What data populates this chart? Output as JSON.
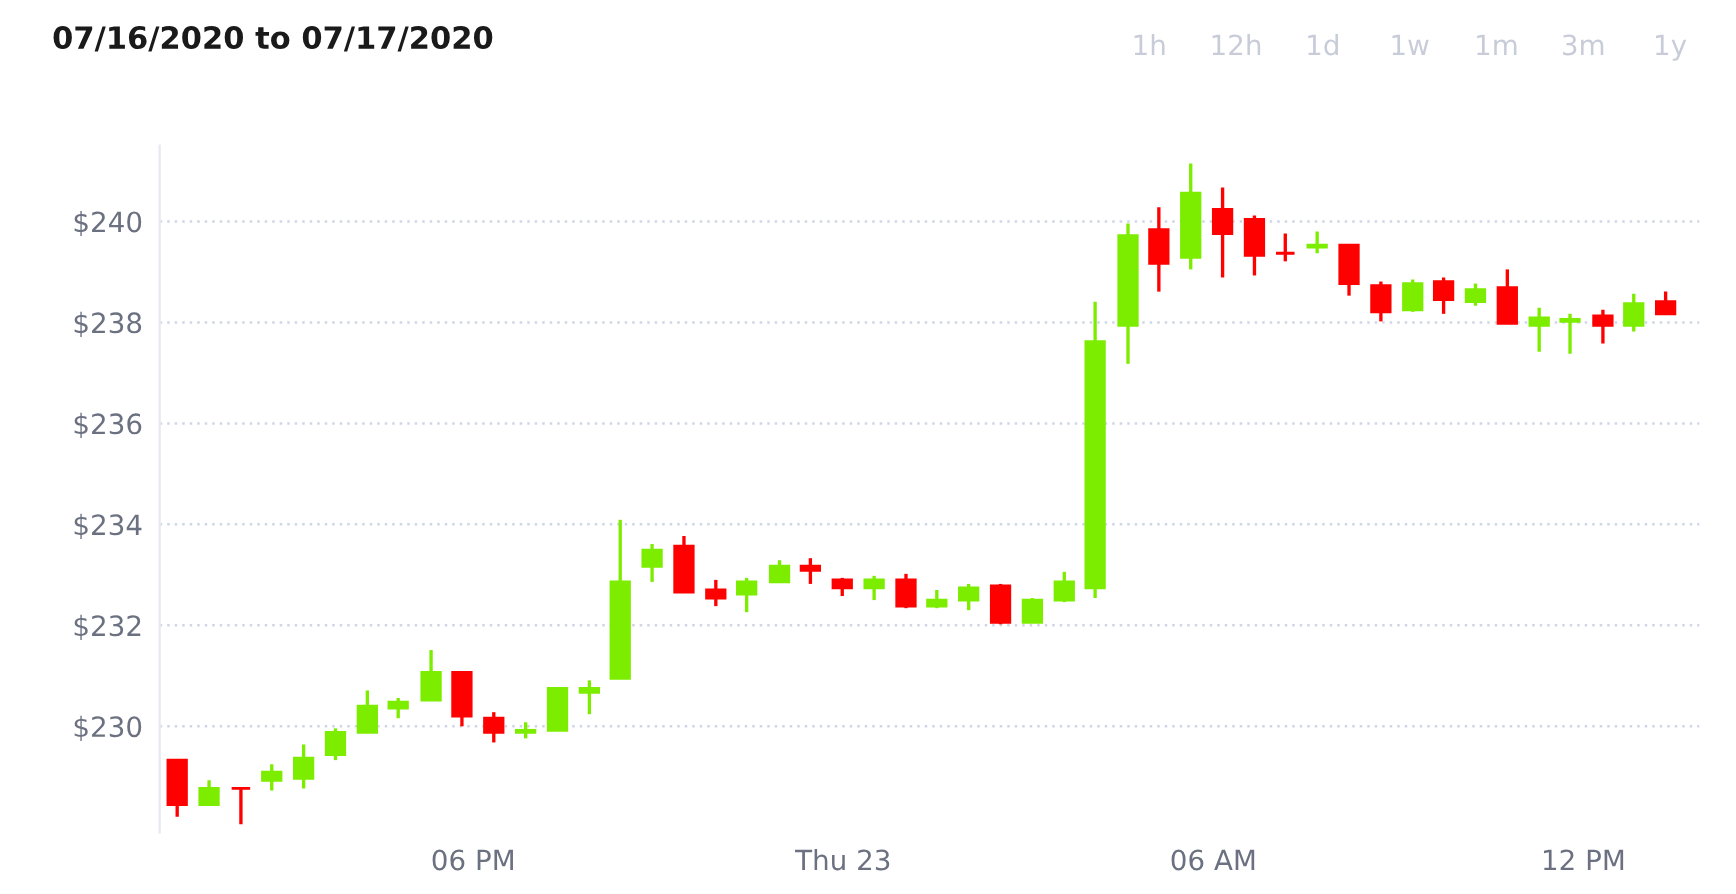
{
  "chart_data": {
    "type": "candlestick",
    "title": "07/16/2020 to 07/17/2020",
    "annotations": [
      "1h",
      "12h",
      "1d",
      "1w",
      "1m",
      "3m",
      "1y"
    ],
    "x": [
      "2020-07-22T13:12",
      "2020-07-22T13:43",
      "2020-07-22T14:14",
      "2020-07-22T14:44",
      "2020-07-22T15:15",
      "2020-07-22T15:46",
      "2020-07-22T16:17",
      "2020-07-22T16:47",
      "2020-07-22T17:19",
      "2020-07-22T17:49",
      "2020-07-22T18:20",
      "2020-07-22T18:51",
      "2020-07-22T19:22",
      "2020-07-22T19:53",
      "2020-07-22T20:23",
      "2020-07-22T20:54",
      "2020-07-22T21:25",
      "2020-07-22T21:56",
      "2020-07-22T22:26",
      "2020-07-22T22:58",
      "2020-07-22T23:28",
      "2020-07-22T23:59",
      "2020-07-23T00:30",
      "2020-07-23T01:01",
      "2020-07-23T01:31",
      "2020-07-23T02:02",
      "2020-07-23T02:33",
      "2020-07-23T03:04",
      "2020-07-23T03:35",
      "2020-07-23T04:05",
      "2020-07-23T04:37",
      "2020-07-23T05:07",
      "2020-07-23T05:38",
      "2020-07-23T06:09",
      "2020-07-23T06:40",
      "2020-07-23T07:10",
      "2020-07-23T07:41",
      "2020-07-23T08:12",
      "2020-07-23T08:43",
      "2020-07-23T09:14",
      "2020-07-23T09:44",
      "2020-07-23T10:15",
      "2020-07-23T10:46",
      "2020-07-23T11:17",
      "2020-07-23T11:47",
      "2020-07-23T12:19",
      "2020-07-23T12:49",
      "2020-07-23T13:20"
    ],
    "ohlc": [
      [
        229.33,
        229.33,
        228.21,
        228.45
      ],
      [
        228.45,
        228.93,
        228.45,
        228.77
      ],
      [
        228.77,
        228.77,
        228.06,
        228.77
      ],
      [
        228.93,
        229.25,
        228.73,
        229.09
      ],
      [
        228.97,
        229.64,
        228.77,
        229.37
      ],
      [
        229.44,
        229.96,
        229.33,
        229.88
      ],
      [
        229.88,
        230.71,
        229.88,
        230.4
      ],
      [
        230.36,
        230.56,
        230.16,
        230.48
      ],
      [
        230.52,
        231.51,
        230.52,
        231.07
      ],
      [
        231.07,
        231.07,
        230.0,
        230.2
      ],
      [
        230.16,
        230.28,
        229.68,
        229.88
      ],
      [
        229.88,
        230.08,
        229.76,
        229.92
      ],
      [
        229.92,
        230.75,
        229.92,
        230.75
      ],
      [
        230.67,
        230.91,
        230.24,
        230.75
      ],
      [
        230.95,
        234.09,
        230.95,
        232.86
      ],
      [
        233.17,
        233.61,
        232.86,
        233.49
      ],
      [
        233.57,
        233.77,
        232.66,
        232.66
      ],
      [
        232.7,
        232.9,
        232.38,
        232.54
      ],
      [
        232.62,
        232.94,
        232.26,
        232.86
      ],
      [
        232.86,
        233.29,
        232.86,
        233.17
      ],
      [
        233.17,
        233.33,
        232.82,
        233.09
      ],
      [
        232.9,
        232.94,
        232.58,
        232.74
      ],
      [
        232.74,
        232.98,
        232.5,
        232.9
      ],
      [
        232.9,
        233.02,
        232.34,
        232.38
      ],
      [
        232.38,
        232.7,
        232.34,
        232.5
      ],
      [
        232.5,
        232.82,
        232.3,
        232.74
      ],
      [
        232.78,
        232.82,
        232.02,
        232.06
      ],
      [
        232.06,
        232.54,
        232.06,
        232.5
      ],
      [
        232.5,
        233.06,
        232.46,
        232.86
      ],
      [
        232.74,
        238.41,
        232.54,
        237.62
      ],
      [
        237.94,
        239.96,
        237.18,
        239.72
      ],
      [
        239.84,
        240.28,
        238.61,
        239.17
      ],
      [
        239.29,
        241.15,
        239.05,
        240.56
      ],
      [
        240.24,
        240.67,
        238.89,
        239.76
      ],
      [
        240.04,
        240.12,
        238.93,
        239.33
      ],
      [
        239.37,
        239.76,
        239.21,
        239.37
      ],
      [
        239.49,
        239.8,
        239.37,
        239.53
      ],
      [
        239.53,
        239.53,
        238.53,
        238.77
      ],
      [
        238.73,
        238.81,
        238.02,
        238.21
      ],
      [
        238.25,
        238.85,
        238.21,
        238.77
      ],
      [
        238.81,
        238.89,
        238.17,
        238.45
      ],
      [
        238.41,
        238.77,
        238.33,
        238.65
      ],
      [
        238.69,
        239.05,
        237.98,
        237.98
      ],
      [
        237.94,
        238.29,
        237.42,
        238.09
      ],
      [
        238.02,
        238.17,
        237.38,
        238.06
      ],
      [
        238.13,
        238.25,
        237.58,
        237.94
      ],
      [
        237.94,
        238.57,
        237.82,
        238.37
      ],
      [
        238.41,
        238.61,
        238.17,
        238.17
      ]
    ],
    "colors": [
      "#ff0000",
      "#7ded00",
      "#ff0000",
      "#7ded00",
      "#7ded00",
      "#7ded00",
      "#7ded00",
      "#7ded00",
      "#7ded00",
      "#ff0000",
      "#ff0000",
      "#7ded00",
      "#7ded00",
      "#7ded00",
      "#7ded00",
      "#7ded00",
      "#ff0000",
      "#ff0000",
      "#7ded00",
      "#7ded00",
      "#ff0000",
      "#ff0000",
      "#7ded00",
      "#ff0000",
      "#7ded00",
      "#7ded00",
      "#ff0000",
      "#7ded00",
      "#7ded00",
      "#7ded00",
      "#7ded00",
      "#ff0000",
      "#7ded00",
      "#ff0000",
      "#ff0000",
      "#ff0000",
      "#7ded00",
      "#ff0000",
      "#ff0000",
      "#7ded00",
      "#ff0000",
      "#7ded00",
      "#ff0000",
      "#7ded00",
      "#7ded00",
      "#ff0000",
      "#7ded00",
      "#ff0000"
    ],
    "xlim": [
      "2020-07-22T12:55",
      "2020-07-23T13:53"
    ],
    "xticks": [
      {
        "value": "2020-07-22T18:00",
        "label": "06 PM"
      },
      {
        "value": "2020-07-23T00:00",
        "label": "Thu 23"
      },
      {
        "value": "2020-07-23T06:00",
        "label": "06 AM"
      },
      {
        "value": "2020-07-23T12:00",
        "label": "12 PM"
      }
    ],
    "ylim": [
      227.9,
      241.5
    ],
    "yticks": [
      {
        "value": 230,
        "label": "$230"
      },
      {
        "value": 232,
        "label": "$232"
      },
      {
        "value": 234,
        "label": "$234"
      },
      {
        "value": 236,
        "label": "$236"
      },
      {
        "value": 238,
        "label": "$238"
      },
      {
        "value": 240,
        "label": "$240"
      }
    ],
    "grid": "y"
  }
}
